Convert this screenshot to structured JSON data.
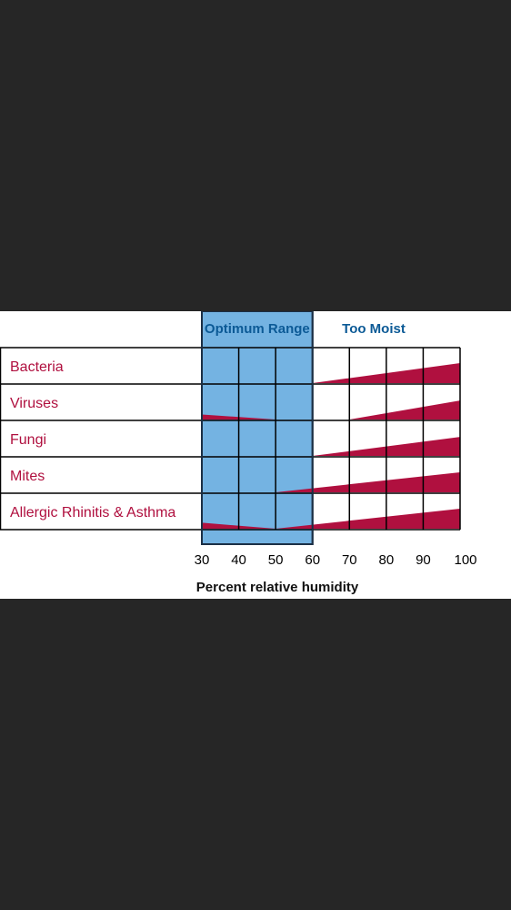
{
  "chart_data": {
    "type": "area",
    "title": "",
    "xlabel": "Percent relative humidity",
    "ylabel": "",
    "x_ticks": [
      30,
      40,
      50,
      60,
      70,
      80,
      90,
      100
    ],
    "xlim": [
      30,
      100
    ],
    "y_scale": "relative effect (0-1)",
    "grid": true,
    "bands": [
      {
        "label": "Optimum Range",
        "from": 30,
        "to": 60
      },
      {
        "label": "Too Moist",
        "from": 60,
        "to": 100
      }
    ],
    "categories": [
      "Bacteria",
      "Viruses",
      "Fungi",
      "Mites",
      "Allergic Rhinitis & Asthma"
    ],
    "series": [
      {
        "name": "Bacteria",
        "x": [
          30,
          60,
          100
        ],
        "values": [
          0,
          0,
          1.0
        ]
      },
      {
        "name": "Viruses",
        "x": [
          30,
          50,
          70,
          100
        ],
        "values": [
          0.25,
          0,
          0,
          0.95
        ]
      },
      {
        "name": "Fungi",
        "x": [
          30,
          60,
          100
        ],
        "values": [
          0,
          0,
          0.95
        ]
      },
      {
        "name": "Mites",
        "x": [
          30,
          50,
          100
        ],
        "values": [
          0,
          0,
          1.0
        ]
      },
      {
        "name": "Allergic Rhinitis & Asthma",
        "x": [
          30,
          50,
          100
        ],
        "values": [
          0.3,
          0,
          1.0
        ]
      }
    ],
    "colors": {
      "band_fill": "#74b3e2",
      "band_stroke": "#1b2f45",
      "area_fill": "#b0103f",
      "label_text": "#b0103f",
      "header_text": "#0c5a96",
      "grid": "#000000",
      "tick_text": "#000000"
    }
  }
}
